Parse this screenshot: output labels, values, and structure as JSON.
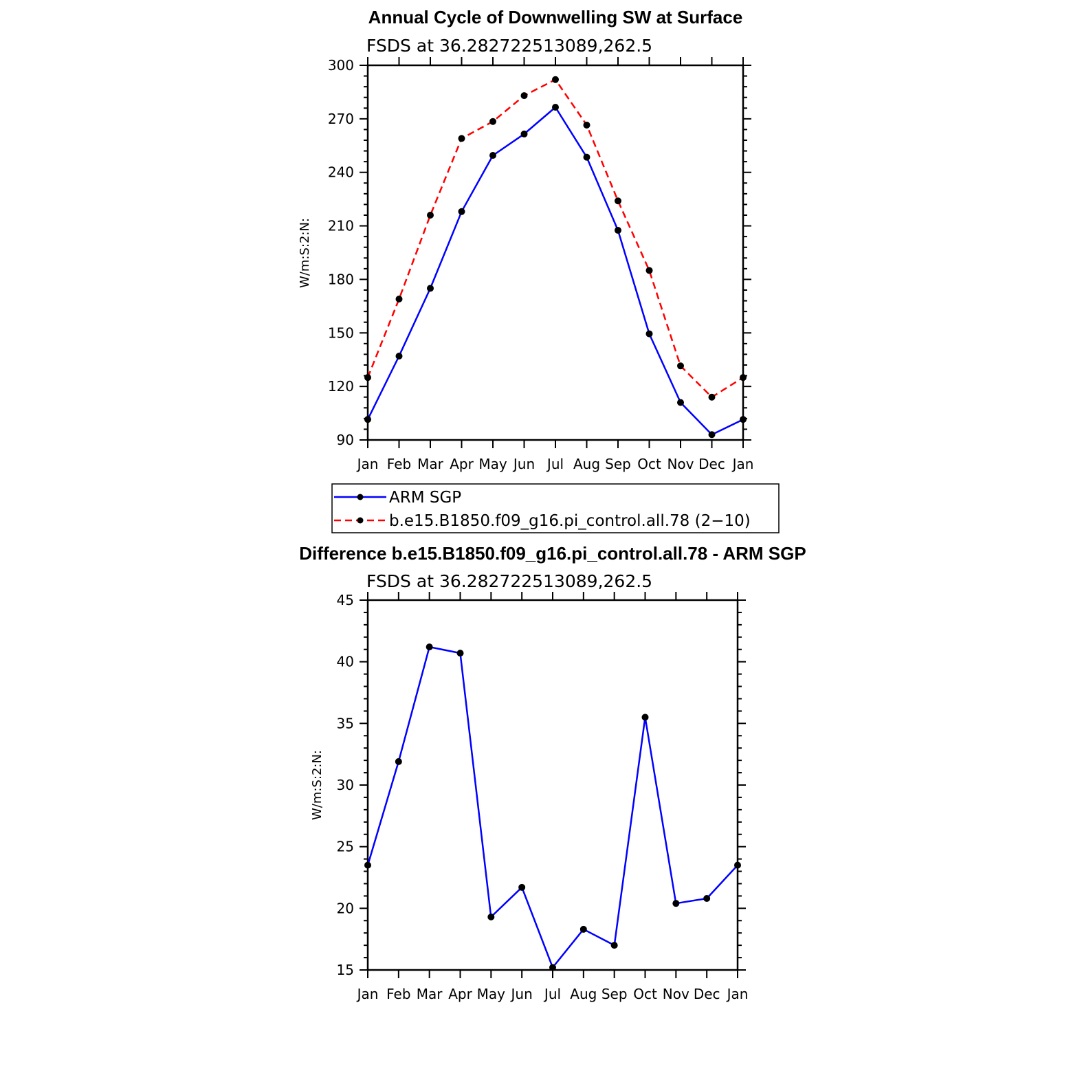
{
  "chart_data": [
    {
      "type": "line",
      "title": "Annual Cycle of Downwelling SW at Surface",
      "subtitle": "FSDS at 36.282722513089,262.5",
      "ylabel": "W/m:S:2:N:",
      "xlabel": "",
      "categories": [
        "Jan",
        "Feb",
        "Mar",
        "Apr",
        "May",
        "Jun",
        "Jul",
        "Aug",
        "Sep",
        "Oct",
        "Nov",
        "Dec",
        "Jan"
      ],
      "ylim": [
        90,
        300
      ],
      "yticks": [
        90,
        120,
        150,
        180,
        210,
        240,
        270,
        300
      ],
      "grid": false,
      "legend_position": "bottom",
      "series": [
        {
          "name": "ARM SGP",
          "color": "#0000ff",
          "dash": "solid",
          "values": [
            101.5,
            137,
            175,
            218,
            249.5,
            261.5,
            276.5,
            248.5,
            207.5,
            149.5,
            111,
            93,
            101.5
          ]
        },
        {
          "name": "b.e15.B1850.f09_g16.pi_control.all.78 (2−10)",
          "color": "#ff0000",
          "dash": "dashed",
          "values": [
            125,
            169,
            216,
            259,
            268.5,
            283,
            292,
            266.5,
            224,
            185,
            131.5,
            114,
            125
          ]
        }
      ]
    },
    {
      "type": "line",
      "title": "Difference b.e15.B1850.f09_g16.pi_control.all.78 - ARM SGP",
      "subtitle": "FSDS at 36.282722513089,262.5",
      "ylabel": "W/m:S:2:N:",
      "xlabel": "",
      "categories": [
        "Jan",
        "Feb",
        "Mar",
        "Apr",
        "May",
        "Jun",
        "Jul",
        "Aug",
        "Sep",
        "Oct",
        "Nov",
        "Dec",
        "Jan"
      ],
      "ylim": [
        15,
        45
      ],
      "yticks": [
        15,
        20,
        25,
        30,
        35,
        40,
        45
      ],
      "grid": false,
      "series": [
        {
          "color": "#0000ff",
          "dash": "solid",
          "values": [
            23.5,
            31.9,
            41.2,
            40.7,
            19.3,
            21.7,
            15.2,
            18.3,
            17.0,
            35.5,
            20.4,
            20.8,
            23.5
          ]
        }
      ]
    }
  ]
}
